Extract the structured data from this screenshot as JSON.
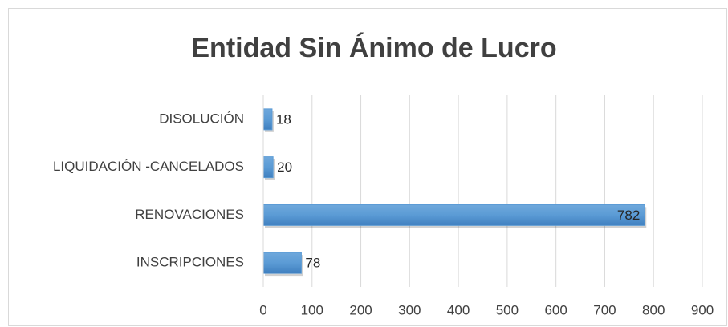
{
  "chart_data": {
    "type": "bar",
    "orientation": "horizontal",
    "title": "Entidad Sin Ánimo de Lucro",
    "categories": [
      "DISOLUCIÓN",
      "LIQUIDACIÓN -CANCELADOS",
      "RENOVACIONES",
      "INSCRIPCIONES"
    ],
    "values": [
      18,
      20,
      782,
      78
    ],
    "color": "#5b9bd5",
    "xlim": [
      0,
      900
    ],
    "xticks": [
      0,
      100,
      200,
      300,
      400,
      500,
      600,
      700,
      800,
      900
    ],
    "grid": true
  }
}
